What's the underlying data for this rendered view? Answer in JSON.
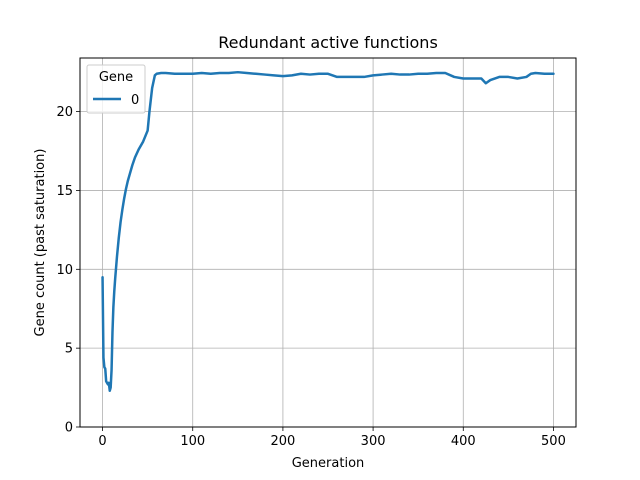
{
  "chart_data": {
    "type": "line",
    "title": "Redundant active functions",
    "xlabel": "Generation",
    "ylabel": "Gene count (past saturation)",
    "xlim": [
      -25,
      525
    ],
    "ylim": [
      0,
      23.4
    ],
    "xticks": [
      0,
      100,
      200,
      300,
      400,
      500
    ],
    "yticks": [
      0,
      5,
      10,
      15,
      20
    ],
    "grid": true,
    "legend": {
      "title": "Gene",
      "placement": "top-left"
    },
    "series": [
      {
        "name": "0",
        "color": "#1f77b4",
        "x": [
          0,
          1,
          2,
          3,
          4,
          5,
          6,
          7,
          8,
          9,
          10,
          11,
          12,
          13,
          14,
          16,
          18,
          20,
          22,
          24,
          26,
          28,
          30,
          33,
          36,
          40,
          45,
          50,
          52,
          55,
          58,
          60,
          65,
          70,
          80,
          90,
          100,
          110,
          120,
          130,
          140,
          150,
          160,
          170,
          180,
          190,
          200,
          210,
          220,
          230,
          240,
          250,
          260,
          270,
          280,
          290,
          300,
          310,
          320,
          330,
          340,
          350,
          360,
          370,
          380,
          390,
          400,
          410,
          420,
          425,
          430,
          440,
          450,
          460,
          470,
          475,
          480,
          490,
          500
        ],
        "values": [
          9.5,
          4.4,
          3.8,
          3.7,
          2.9,
          2.8,
          2.7,
          2.8,
          2.3,
          2.5,
          3.6,
          6.0,
          7.6,
          8.6,
          9.4,
          10.8,
          12.0,
          13.0,
          13.8,
          14.5,
          15.1,
          15.6,
          16.0,
          16.6,
          17.1,
          17.6,
          18.1,
          18.8,
          20.0,
          21.5,
          22.3,
          22.4,
          22.45,
          22.45,
          22.4,
          22.4,
          22.4,
          22.45,
          22.4,
          22.45,
          22.45,
          22.5,
          22.45,
          22.4,
          22.35,
          22.3,
          22.25,
          22.3,
          22.4,
          22.35,
          22.4,
          22.4,
          22.2,
          22.2,
          22.2,
          22.2,
          22.3,
          22.35,
          22.4,
          22.35,
          22.35,
          22.4,
          22.4,
          22.45,
          22.45,
          22.2,
          22.1,
          22.1,
          22.1,
          21.8,
          22.0,
          22.2,
          22.2,
          22.1,
          22.2,
          22.4,
          22.45,
          22.4,
          22.4
        ]
      }
    ]
  }
}
